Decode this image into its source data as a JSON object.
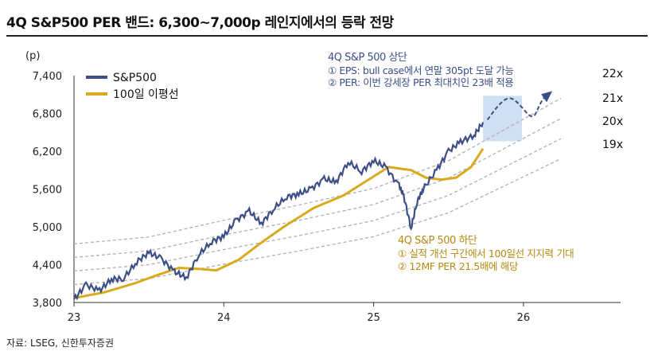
{
  "title": "4Q S&P500 PER 밴드: 6,300~7,000p 레인지에서의 등락 전망",
  "source": "자료: LSEG, 신한투자증권",
  "chart_data": {
    "type": "line",
    "ylabel": "(p)",
    "ylim": [
      3800,
      7400
    ],
    "yticks": [
      3800,
      4400,
      5000,
      5600,
      6200,
      6800,
      7400
    ],
    "ytick_labels": [
      "3,800",
      "4,400",
      "5,000",
      "5,600",
      "6,200",
      "6,800",
      "7,400"
    ],
    "xlim": [
      23,
      26.6
    ],
    "xticks": [
      23,
      24,
      25,
      26
    ],
    "xtick_labels": [
      "23",
      "24",
      "25",
      "26"
    ],
    "legend": "top-left",
    "colors": {
      "sp500": "#3b4f86",
      "ma100": "#d9aa1e",
      "band": "#b0b0b0",
      "box": "#cfe0f3",
      "upper_note": "#3b4f86",
      "lower_note": "#b58a10"
    },
    "series": [
      {
        "name": "S&P500",
        "x": [
          23,
          23.08,
          23.17,
          23.25,
          23.33,
          23.42,
          23.5,
          23.58,
          23.67,
          23.75,
          23.83,
          23.92,
          24,
          24.08,
          24.17,
          24.25,
          24.33,
          24.42,
          24.5,
          24.58,
          24.67,
          24.75,
          24.83,
          24.92,
          25,
          25.08,
          25.17,
          25.2,
          25.25,
          25.29,
          25.33,
          25.42,
          25.5,
          25.58,
          25.67,
          25.73
        ],
        "values": [
          3850,
          4080,
          3990,
          4170,
          4180,
          4450,
          4590,
          4500,
          4290,
          4190,
          4550,
          4770,
          4850,
          5100,
          5250,
          5050,
          5280,
          5480,
          5520,
          5600,
          5760,
          5710,
          6030,
          5880,
          6050,
          5950,
          5650,
          5500,
          4980,
          5400,
          5600,
          5900,
          6200,
          6350,
          6450,
          6660
        ]
      },
      {
        "name": "100일 이평선",
        "x": [
          23,
          23.2,
          23.4,
          23.55,
          23.7,
          23.85,
          23.95,
          24.1,
          24.25,
          24.4,
          24.6,
          24.8,
          25,
          25.1,
          25.25,
          25.35,
          25.45,
          25.55,
          25.65,
          25.73
        ],
        "values": [
          3870,
          3960,
          4100,
          4230,
          4350,
          4330,
          4310,
          4480,
          4750,
          5000,
          5300,
          5500,
          5800,
          5950,
          5900,
          5780,
          5750,
          5780,
          5950,
          6240
        ]
      }
    ],
    "per_bands": {
      "multiples": [
        19,
        20,
        21,
        22
      ],
      "labels": [
        "19x",
        "20x",
        "21x",
        "22x"
      ],
      "eps_x": [
        23,
        23.5,
        24,
        24.5,
        25,
        25.5,
        26,
        26.25
      ],
      "eps": [
        215,
        220,
        232,
        243,
        255,
        275,
        305,
        320
      ]
    },
    "forecast_box": {
      "x": [
        25.73,
        25.99
      ],
      "y": [
        6360,
        7080
      ]
    },
    "forecast_path": {
      "x": [
        25.76,
        25.9,
        26.05,
        26.15
      ],
      "values": [
        6700,
        7050,
        6780,
        7080
      ]
    },
    "annotations": {
      "upper": {
        "title": "4Q S&P 500 상단",
        "lines": [
          "① EPS: bull case에서 연말 305pt 도달 가능",
          "② PER: 이번 강세장 PER 최대치인 23배 적용"
        ]
      },
      "lower": {
        "title": "4Q S&P 500 하단",
        "lines": [
          "① 실적 개선 구간에서 100일선 지지력 기대",
          "② 12MF PER 21.5배에 해당"
        ]
      }
    }
  }
}
